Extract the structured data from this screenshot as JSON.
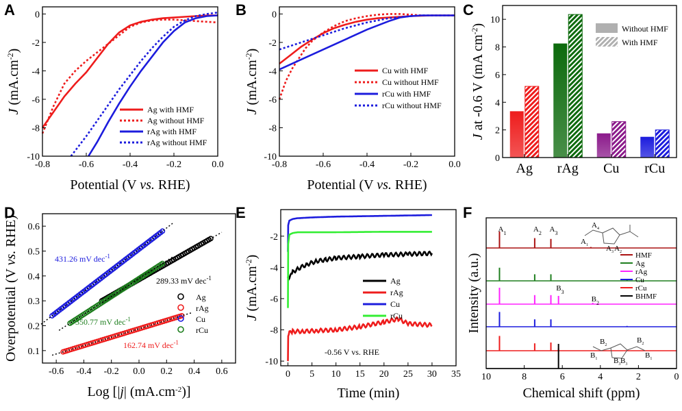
{
  "colors": {
    "red": "#ee1c1c",
    "blue": "#1c1cdd",
    "black": "#000000",
    "green": "#1e7e1e",
    "lime": "#33ee33",
    "magenta": "#ff22ff",
    "darkred": "#aa1111",
    "purple": "#8b1a8b",
    "darkgreen": "#0c6a0c"
  },
  "chart_data": [
    {
      "id": "A",
      "panel_label": "A",
      "type": "line",
      "xlabel_main": "Potential (V ",
      "xlabel_ital": "vs.",
      "xlabel_tail": " RHE)",
      "ylabel_ital": "J",
      "ylabel_tail": " (mA.cm",
      "xlim": [
        -0.8,
        0.0
      ],
      "ylim": [
        -10,
        0.5
      ],
      "xticks": [
        "-0.8",
        "-0.6",
        "-0.4",
        "-0.2",
        "0.0"
      ],
      "yticks": [
        "0",
        "-2",
        "-4",
        "-6",
        "-8",
        "-10"
      ],
      "series": [
        {
          "name": "Ag with HMF",
          "color": "red",
          "dash": false,
          "x": [
            -0.8,
            -0.75,
            -0.7,
            -0.65,
            -0.6,
            -0.55,
            -0.5,
            -0.45,
            -0.4,
            -0.35,
            -0.3,
            -0.25,
            -0.2,
            -0.15,
            -0.1,
            -0.05,
            0.0
          ],
          "y": [
            -8.0,
            -6.9,
            -5.8,
            -4.9,
            -4.1,
            -3.1,
            -2.1,
            -1.3,
            -0.8,
            -0.55,
            -0.4,
            -0.3,
            -0.25,
            -0.2,
            -0.15,
            -0.1,
            -0.1
          ]
        },
        {
          "name": "Ag without HMF",
          "color": "red",
          "dash": true,
          "x": [
            -0.8,
            -0.75,
            -0.7,
            -0.65,
            -0.6,
            -0.55,
            -0.5,
            -0.45,
            -0.4,
            -0.35,
            -0.3,
            -0.25,
            -0.2,
            -0.15,
            -0.1,
            -0.05,
            0.0
          ],
          "y": [
            -8.4,
            -6.5,
            -4.9,
            -4.0,
            -3.3,
            -2.7,
            -2.1,
            -1.5,
            -0.9,
            -0.6,
            -0.45,
            -0.4,
            -0.4,
            -0.45,
            -0.5,
            -0.55,
            -0.6
          ]
        },
        {
          "name": "rAg with HMF",
          "color": "blue",
          "dash": false,
          "x": [
            -0.59,
            -0.55,
            -0.5,
            -0.45,
            -0.4,
            -0.35,
            -0.3,
            -0.25,
            -0.2,
            -0.15,
            -0.1,
            -0.05,
            0.0
          ],
          "y": [
            -10.0,
            -9.0,
            -7.6,
            -6.3,
            -5.1,
            -4.0,
            -3.0,
            -2.0,
            -1.2,
            -0.6,
            -0.3,
            -0.15,
            -0.1
          ]
        },
        {
          "name": "rAg without HMF",
          "color": "blue",
          "dash": true,
          "x": [
            -0.67,
            -0.6,
            -0.55,
            -0.5,
            -0.45,
            -0.4,
            -0.35,
            -0.3,
            -0.25,
            -0.2,
            -0.15,
            -0.1,
            -0.05,
            0.0
          ],
          "y": [
            -10.0,
            -8.6,
            -7.5,
            -6.4,
            -5.3,
            -4.3,
            -3.3,
            -2.4,
            -1.6,
            -0.9,
            -0.45,
            -0.15,
            0.0,
            0.1
          ]
        }
      ]
    },
    {
      "id": "B",
      "panel_label": "B",
      "type": "line",
      "xlabel_main": "Potential (V ",
      "xlabel_ital": "vs.",
      "xlabel_tail": " RHE)",
      "ylabel_ital": "J",
      "ylabel_tail": " (mA.cm",
      "xlim": [
        -0.8,
        0.0
      ],
      "ylim": [
        -10,
        0.5
      ],
      "xticks": [
        "-0.8",
        "-0.6",
        "-0.4",
        "-0.2",
        "0.0"
      ],
      "yticks": [
        "0",
        "-2",
        "-4",
        "-6",
        "-8",
        "-10"
      ],
      "series": [
        {
          "name": "Cu with HMF",
          "color": "red",
          "dash": false,
          "x": [
            -0.8,
            -0.75,
            -0.7,
            -0.65,
            -0.6,
            -0.55,
            -0.5,
            -0.45,
            -0.4,
            -0.35,
            -0.3,
            -0.25,
            -0.2,
            -0.15,
            -0.1,
            -0.05,
            0.0
          ],
          "y": [
            -3.5,
            -2.9,
            -2.3,
            -1.8,
            -1.35,
            -1.0,
            -0.75,
            -0.55,
            -0.4,
            -0.3,
            -0.25,
            -0.2,
            -0.15,
            -0.12,
            -0.1,
            -0.1,
            -0.1
          ]
        },
        {
          "name": "Cu without HMF",
          "color": "red",
          "dash": true,
          "x": [
            -0.8,
            -0.77,
            -0.74,
            -0.71,
            -0.68,
            -0.65,
            -0.6,
            -0.55,
            -0.5,
            -0.45,
            -0.4,
            -0.35,
            -0.3,
            -0.25,
            -0.2,
            -0.15,
            -0.1,
            -0.05,
            0.0
          ],
          "y": [
            -6.0,
            -4.7,
            -3.8,
            -3.1,
            -2.4,
            -1.9,
            -1.3,
            -0.85,
            -0.5,
            -0.3,
            -0.15,
            -0.05,
            0.0,
            0.0,
            -0.05,
            -0.1,
            -0.1,
            -0.1,
            -0.1
          ]
        },
        {
          "name": "rCu with HMF",
          "color": "blue",
          "dash": false,
          "x": [
            -0.8,
            -0.7,
            -0.6,
            -0.5,
            -0.4,
            -0.3,
            -0.25,
            -0.2,
            -0.15,
            -0.1,
            -0.05,
            0.0
          ],
          "y": [
            -3.9,
            -3.2,
            -2.5,
            -1.8,
            -1.1,
            -0.5,
            -0.25,
            -0.15,
            -0.1,
            -0.1,
            -0.1,
            -0.1
          ]
        },
        {
          "name": "rCu without HMF",
          "color": "blue",
          "dash": true,
          "x": [
            -0.8,
            -0.7,
            -0.6,
            -0.5,
            -0.4,
            -0.3,
            -0.2,
            -0.15,
            -0.1,
            -0.05,
            0.0
          ],
          "y": [
            -2.5,
            -2.0,
            -1.5,
            -1.0,
            -0.6,
            -0.3,
            -0.15,
            -0.1,
            -0.1,
            -0.1,
            -0.1
          ]
        }
      ]
    },
    {
      "id": "C",
      "panel_label": "C",
      "type": "bar",
      "ylabel_ital": "J",
      "ylabel_tail": " at -0.6 V (mA cm",
      "ylim": [
        0,
        11
      ],
      "yticks": [
        "0",
        "2",
        "4",
        "6",
        "8",
        "10"
      ],
      "categories": [
        "Ag",
        "rAg",
        "Cu",
        "rCu"
      ],
      "category_colors": [
        "red",
        "darkgreen",
        "purple",
        "blue"
      ],
      "series": [
        {
          "name": "Without HMF",
          "values": [
            3.35,
            8.25,
            1.75,
            1.5
          ]
        },
        {
          "name": "With HMF",
          "values": [
            5.15,
            10.35,
            2.6,
            2.0
          ]
        }
      ]
    },
    {
      "id": "D",
      "panel_label": "D",
      "type": "scatter",
      "xlabel_main": "Log [|",
      "xlabel_ital": "j",
      "xlabel_tail": "| (mA.cm",
      "ylabel_main": "Overpotential (V ",
      "ylabel_ital": "vs.",
      "ylabel_tail": " RHE)",
      "xlim": [
        -0.7,
        0.7
      ],
      "ylim": [
        0.05,
        0.65
      ],
      "xticks": [
        "-0.6",
        "-0.4",
        "-0.2",
        "0.0",
        "0.2",
        "0.4",
        "0.6"
      ],
      "yticks": [
        "0.1",
        "0.2",
        "0.3",
        "0.4",
        "0.5",
        "0.6"
      ],
      "series": [
        {
          "name": "Ag",
          "color": "black",
          "slope_label": "289.33 mV dec",
          "x_range": [
            -0.27,
            0.52
          ],
          "y_range": [
            0.3,
            0.55
          ]
        },
        {
          "name": "rAg",
          "color": "red",
          "slope_label": "162.74 mV dec",
          "x_range": [
            -0.55,
            0.31
          ],
          "y_range": [
            0.095,
            0.24
          ]
        },
        {
          "name": "Cu",
          "color": "blue",
          "slope_label": "431.26 mV dec",
          "x_range": [
            -0.63,
            0.17
          ],
          "y_range": [
            0.24,
            0.58
          ]
        },
        {
          "name": "rCu",
          "color": "green",
          "slope_label": "350.77 mV dec",
          "x_range": [
            -0.5,
            0.17
          ],
          "y_range": [
            0.21,
            0.45
          ]
        }
      ]
    },
    {
      "id": "E",
      "panel_label": "E",
      "type": "line",
      "xlabel_main": "Time (min)",
      "ylabel_ital": "J",
      "ylabel_tail": " (mA.cm",
      "xlim": [
        -1.5,
        35
      ],
      "ylim": [
        -10.3,
        -0.3
      ],
      "xticks": [
        "0",
        "5",
        "10",
        "15",
        "20",
        "25",
        "30",
        "35"
      ],
      "yticks": [
        "-2",
        "-4",
        "-6",
        "-8",
        "-10"
      ],
      "annotation": "-0.56 V vs. RHE",
      "series": [
        {
          "name": "Ag",
          "color": "black",
          "t": [
            0,
            0.1,
            0.5,
            1,
            2,
            4,
            6,
            8,
            10,
            15,
            20,
            25,
            30
          ],
          "y": [
            -4.6,
            -4.8,
            -4.6,
            -4.3,
            -4.1,
            -3.8,
            -3.6,
            -3.5,
            -3.4,
            -3.3,
            -3.2,
            -3.15,
            -3.1
          ]
        },
        {
          "name": "rAg",
          "color": "red",
          "t": [
            0,
            0.05,
            0.3,
            1,
            3,
            6,
            10,
            15,
            20,
            23,
            25,
            30
          ],
          "y": [
            -10.0,
            -8.4,
            -8.2,
            -8.1,
            -8.1,
            -8.05,
            -8.0,
            -7.8,
            -7.5,
            -7.3,
            -7.6,
            -7.7
          ]
        },
        {
          "name": "Cu",
          "color": "blue",
          "t": [
            0,
            0.05,
            0.3,
            1,
            2,
            5,
            10,
            20,
            30
          ],
          "y": [
            -3.0,
            -1.3,
            -1.0,
            -0.9,
            -0.85,
            -0.8,
            -0.75,
            -0.7,
            -0.65
          ]
        },
        {
          "name": "rCu",
          "color": "lime",
          "t": [
            0,
            0.05,
            0.3,
            1,
            2,
            5,
            10,
            20,
            30
          ],
          "y": [
            -6.6,
            -2.5,
            -1.9,
            -1.8,
            -1.75,
            -1.75,
            -1.75,
            -1.72,
            -1.72
          ]
        }
      ]
    },
    {
      "id": "F",
      "panel_label": "F",
      "type": "line",
      "xlabel_main": "Chemical shift (ppm)",
      "ylabel_main": "Intensity (a.u.)",
      "xlim": [
        10,
        0
      ],
      "xticks": [
        "10",
        "8",
        "6",
        "4",
        "2",
        "0"
      ],
      "peak_labels": [
        {
          "label": "A",
          "sub": "1",
          "ppm": 9.3,
          "row": 0
        },
        {
          "label": "A",
          "sub": "2",
          "ppm": 7.45,
          "row": 0
        },
        {
          "label": "A",
          "sub": "3",
          "ppm": 6.6,
          "row": 0
        },
        {
          "label": "B",
          "sub": "3",
          "ppm": 6.25,
          "row": 2
        },
        {
          "label": "B",
          "sub": "2",
          "ppm": 4.4,
          "row": 3
        }
      ],
      "series": [
        {
          "name": "HMF",
          "color": "darkred",
          "peaks": [
            [
              9.3,
              1.0
            ],
            [
              7.45,
              0.6
            ],
            [
              6.6,
              0.55
            ],
            [
              4.5,
              0.06
            ]
          ]
        },
        {
          "name": "Ag",
          "color": "green",
          "peaks": [
            [
              9.3,
              0.8
            ],
            [
              7.45,
              0.4
            ],
            [
              6.6,
              0.4
            ],
            [
              2.6,
              0.05
            ]
          ]
        },
        {
          "name": "rAg",
          "color": "magenta",
          "peaks": [
            [
              9.3,
              1.0
            ],
            [
              7.45,
              0.55
            ],
            [
              6.6,
              0.55
            ],
            [
              6.2,
              0.5
            ],
            [
              4.4,
              0.08
            ]
          ]
        },
        {
          "name": "Cu",
          "color": "blue",
          "peaks": [
            [
              9.3,
              0.9
            ],
            [
              7.45,
              0.45
            ],
            [
              6.6,
              0.45
            ],
            [
              2.6,
              0.05
            ]
          ]
        },
        {
          "name": "rCu",
          "color": "red",
          "peaks": [
            [
              9.3,
              0.9
            ],
            [
              7.45,
              0.45
            ],
            [
              6.6,
              0.5
            ],
            [
              6.2,
              0.15
            ]
          ]
        },
        {
          "name": "BHMF",
          "color": "black",
          "peaks": [
            [
              6.2,
              1.5
            ]
          ]
        }
      ],
      "structure_labels_hmf": [
        "A",
        "A",
        "A",
        "A"
      ],
      "structure_labels_bhmf": [
        "B",
        "B",
        "B",
        "B",
        "B",
        "B"
      ]
    }
  ]
}
